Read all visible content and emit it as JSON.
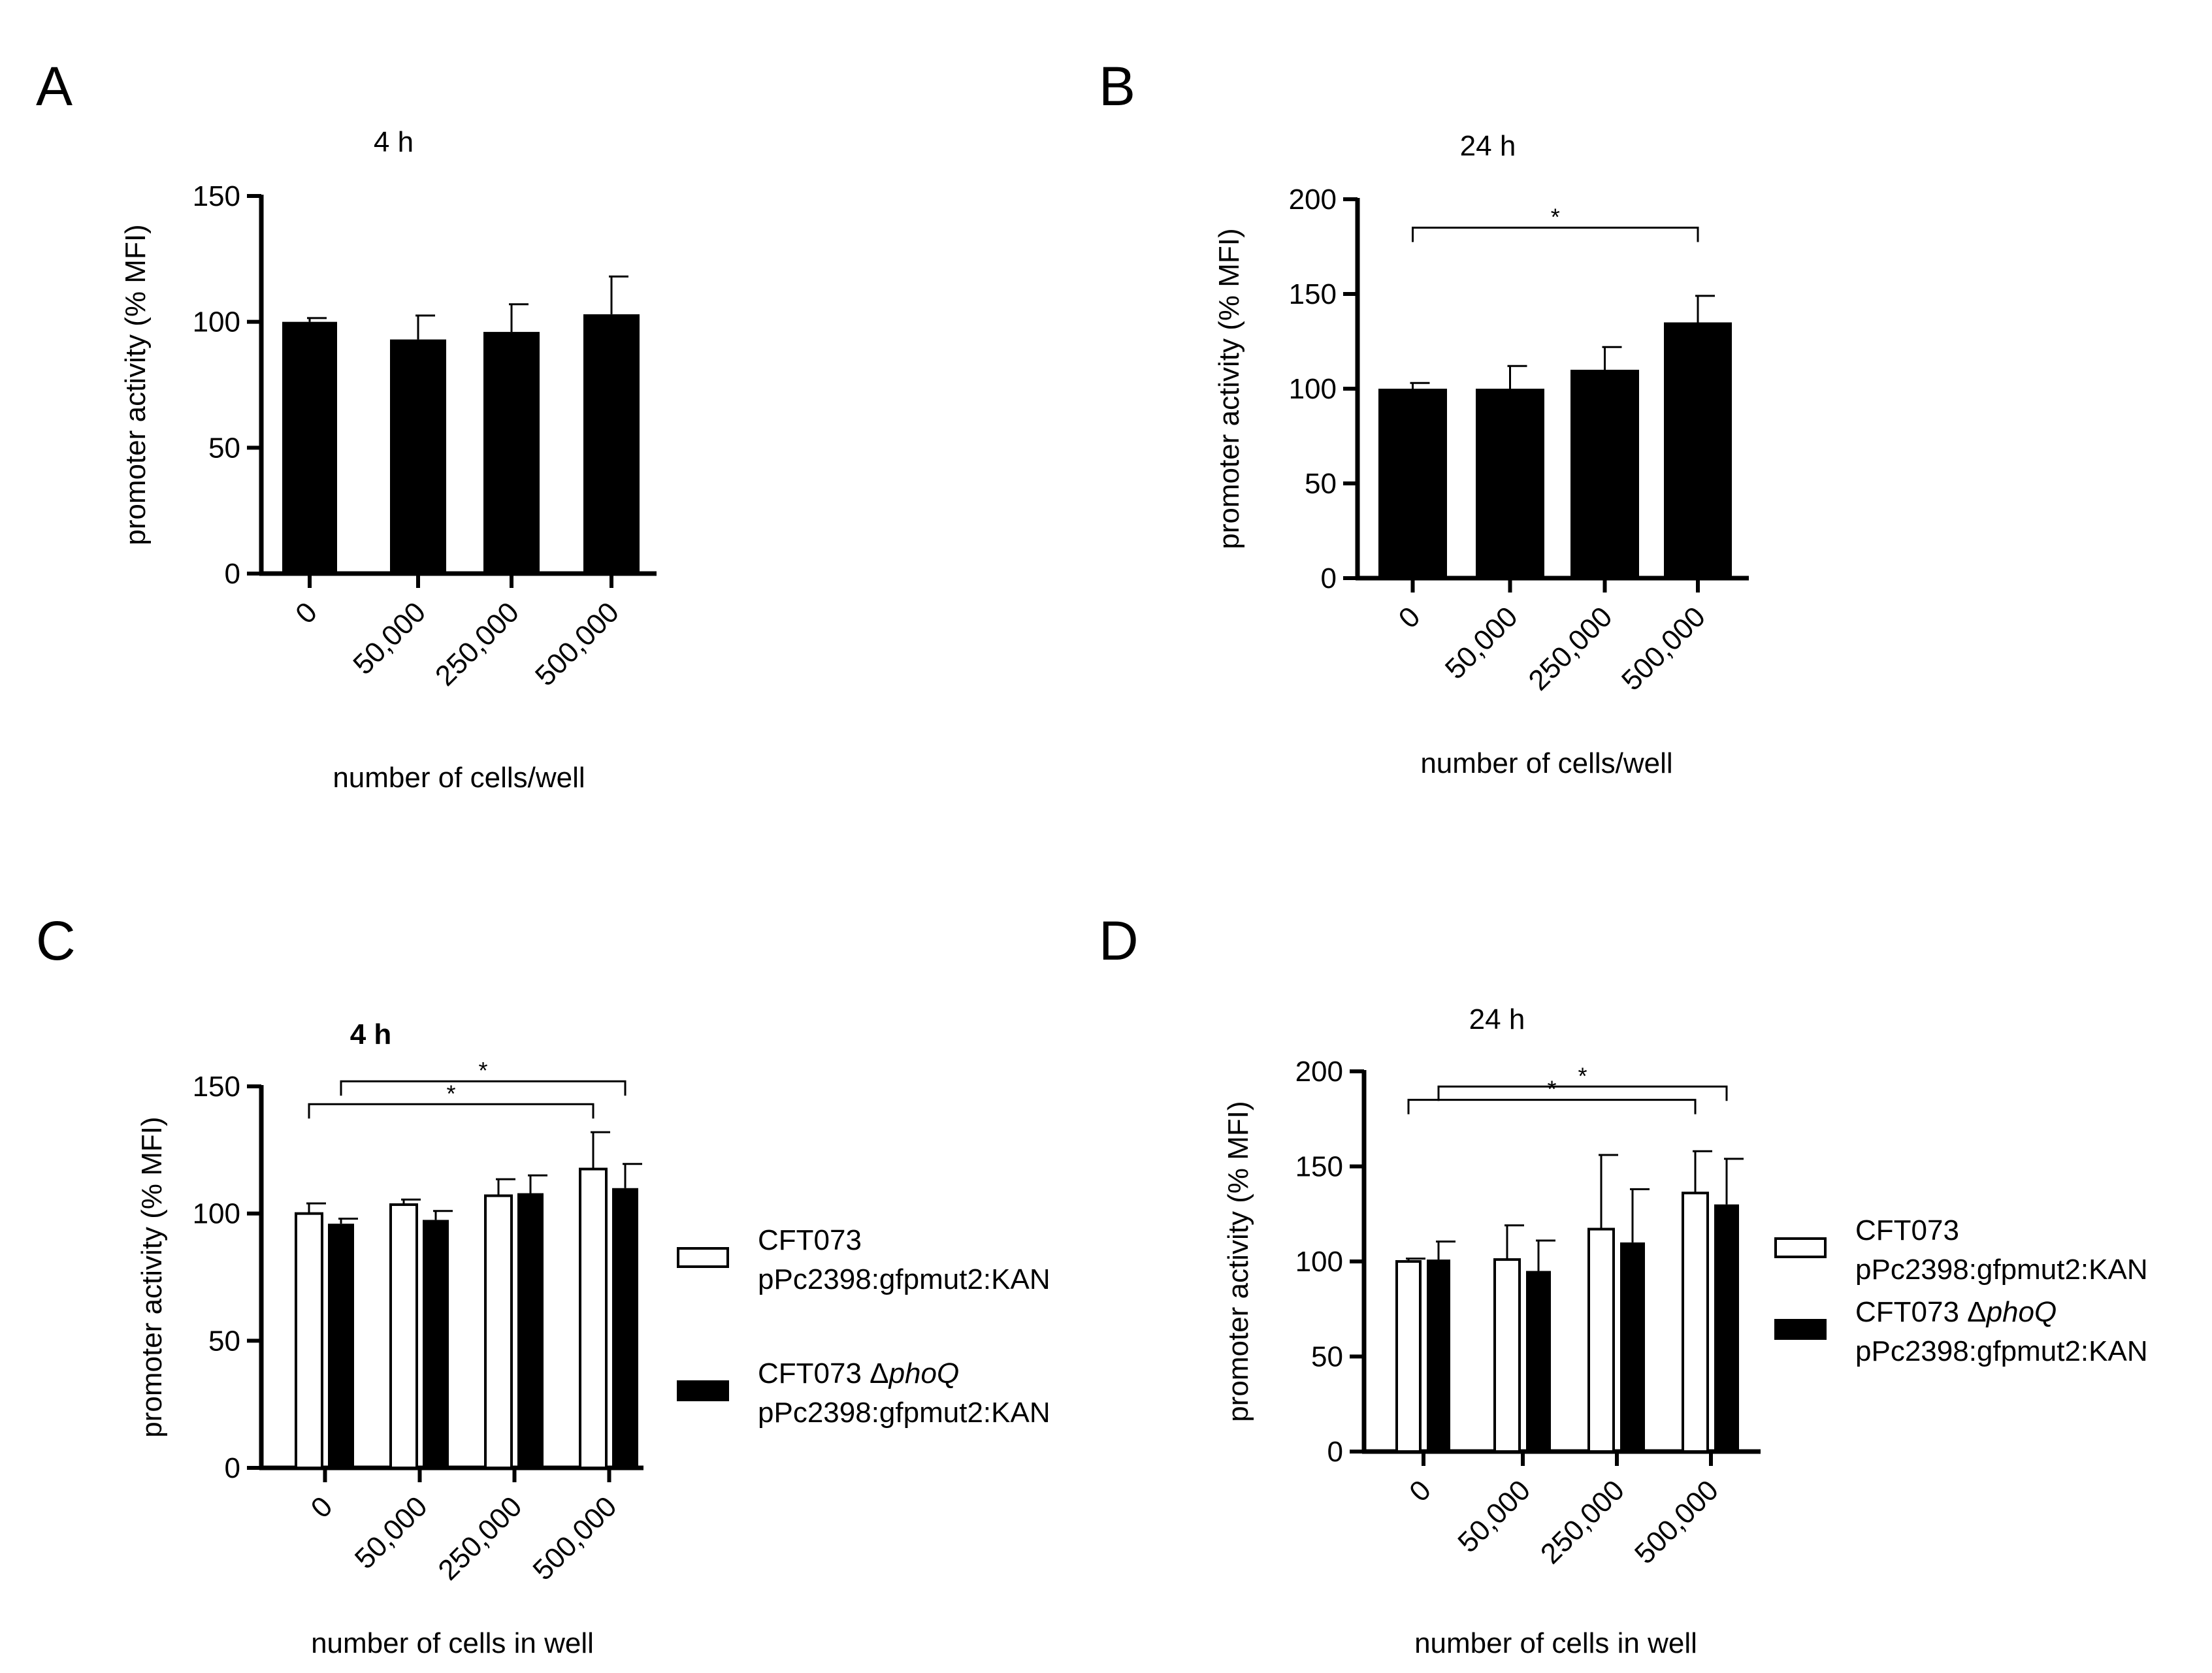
{
  "chart_data": [
    {
      "panel": "A",
      "type": "bar",
      "title": "4 h",
      "xlabel": "number of cells/well",
      "ylabel": "promoter activity (% MFI)",
      "ylim": [
        0,
        150
      ],
      "yticks": [
        0,
        50,
        100,
        150
      ],
      "categories": [
        "0",
        "50,000",
        "250,000",
        "500,000"
      ],
      "series": [
        {
          "name": "",
          "fill": "#000000",
          "values": [
            100,
            93,
            96,
            103
          ],
          "errors": [
            1.5,
            9.5,
            11,
            15
          ]
        }
      ],
      "brackets": []
    },
    {
      "panel": "B",
      "type": "bar",
      "title": "24 h",
      "xlabel": "number of cells/well",
      "ylabel": "promoter activity (% MFI)",
      "ylim": [
        0,
        200
      ],
      "yticks": [
        0,
        50,
        100,
        150,
        200
      ],
      "categories": [
        "0",
        "50,000",
        "250,000",
        "500,000"
      ],
      "series": [
        {
          "name": "",
          "fill": "#000000",
          "values": [
            100,
            100,
            110,
            135
          ],
          "errors": [
            3,
            12,
            12,
            14
          ]
        }
      ],
      "brackets": [
        {
          "from_category": 0,
          "from_series": 0,
          "to_category": 3,
          "to_series": 0,
          "label": "*",
          "level": 1
        }
      ]
    },
    {
      "panel": "C",
      "type": "bar",
      "title": "4 h",
      "xlabel": "number of cells in well",
      "ylabel": "promoter activity (% MFI)",
      "ylim": [
        0,
        150
      ],
      "yticks": [
        0,
        50,
        100,
        150
      ],
      "categories": [
        "0",
        "50,000",
        "250,000",
        "500,000"
      ],
      "series": [
        {
          "name": "CFT073 pPc2398:gfpmut2:KAN",
          "fill": "#ffffff",
          "values": [
            100,
            103.5,
            107,
            117.5
          ],
          "errors": [
            4,
            2,
            6.5,
            14.5
          ]
        },
        {
          "name": "CFT073 ΔphoQ pPc2398:gfpmut2:KAN",
          "fill": "#000000",
          "values": [
            96,
            97.5,
            108,
            110
          ],
          "errors": [
            2,
            3.5,
            7,
            9.5
          ]
        }
      ],
      "legend": [
        {
          "line1": "CFT073",
          "line2": "pPc2398:gfpmut2:KAN"
        },
        {
          "line1_prefix": "CFT073 Δ",
          "line1_italic": "phoQ",
          "line2": "pPc2398:gfpmut2:KAN"
        }
      ],
      "brackets": [
        {
          "from_category": 0,
          "from_series": 0,
          "to_category": 3,
          "to_series": 0,
          "label": "*",
          "level": 1
        },
        {
          "from_category": 0,
          "from_series": 1,
          "to_category": 3,
          "to_series": 1,
          "label": "*",
          "level": 2
        }
      ]
    },
    {
      "panel": "D",
      "type": "bar",
      "title": "24 h",
      "xlabel": "number of cells in well",
      "ylabel": "promoter activity (% MFI)",
      "ylim": [
        0,
        200
      ],
      "yticks": [
        0,
        50,
        100,
        150,
        200
      ],
      "categories": [
        "0",
        "50,000",
        "250,000",
        "500,000"
      ],
      "series": [
        {
          "name": "CFT073 pPc2398:gfpmut2:KAN",
          "fill": "#ffffff",
          "values": [
            100,
            101,
            117,
            136
          ],
          "errors": [
            1.5,
            18,
            39,
            22
          ]
        },
        {
          "name": "CFT073 ΔphoQ pPc2398:gfpmut2:KAN",
          "fill": "#000000",
          "values": [
            101,
            95,
            110,
            130
          ],
          "errors": [
            9.5,
            16,
            28,
            24
          ]
        }
      ],
      "legend": [
        {
          "line1": "CFT073",
          "line2": "pPc2398:gfpmut2:KAN"
        },
        {
          "line1_prefix": "CFT073 Δ",
          "line1_italic": "phoQ",
          "line2": "pPc2398:gfpmut2:KAN"
        }
      ],
      "brackets": [
        {
          "from_category": 0,
          "from_series": 0,
          "to_category": 3,
          "to_series": 0,
          "label": "*",
          "level": 1
        },
        {
          "from_category": 0,
          "from_series": 1,
          "to_category": 3,
          "to_series": 1,
          "label": "*",
          "level": 2
        }
      ]
    }
  ]
}
